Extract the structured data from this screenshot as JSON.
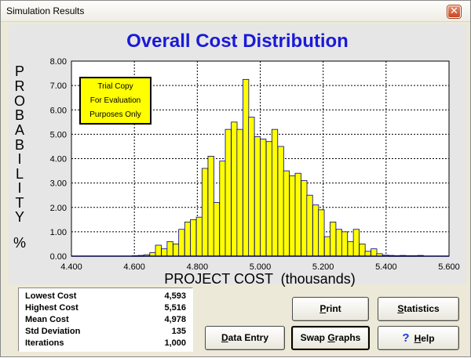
{
  "window": {
    "title": "Simulation Results",
    "close_glyph": "✕"
  },
  "chart_title": "Overall  Cost  Distribution",
  "trial_box": {
    "line1": "Trial Copy",
    "line2": "For Evaluation",
    "line3": "Purposes Only"
  },
  "chart_data": {
    "type": "bar",
    "title": "Overall  Cost  Distribution",
    "ylabel_letters": [
      "P",
      "R",
      "O",
      "B",
      "A",
      "B",
      "I",
      "L",
      "I",
      "T",
      "Y",
      "%"
    ],
    "xlabel": "PROJECT COST  (thousands)",
    "xlim": [
      4.4,
      5.6
    ],
    "ylim": [
      0,
      8
    ],
    "xticks": [
      "4.400",
      "4.600",
      "4.800",
      "5.000",
      "5.200",
      "5.400",
      "5.600"
    ],
    "yticks": [
      "0.00",
      "1.00",
      "2.00",
      "3.00",
      "4.00",
      "5.00",
      "6.00",
      "7.00",
      "8.00"
    ],
    "grid": true,
    "bar_color": "#ffff00",
    "bin_width": 0.0185,
    "bins": [
      {
        "x": 4.593,
        "y": 0.02
      },
      {
        "x": 4.612,
        "y": 0.03
      },
      {
        "x": 4.63,
        "y": 0.06
      },
      {
        "x": 4.649,
        "y": 0.15
      },
      {
        "x": 4.667,
        "y": 0.45
      },
      {
        "x": 4.686,
        "y": 0.3
      },
      {
        "x": 4.704,
        "y": 0.6
      },
      {
        "x": 4.723,
        "y": 0.5
      },
      {
        "x": 4.741,
        "y": 1.1
      },
      {
        "x": 4.76,
        "y": 1.4
      },
      {
        "x": 4.778,
        "y": 1.5
      },
      {
        "x": 4.797,
        "y": 1.6
      },
      {
        "x": 4.815,
        "y": 3.6
      },
      {
        "x": 4.834,
        "y": 4.1
      },
      {
        "x": 4.852,
        "y": 2.2
      },
      {
        "x": 4.871,
        "y": 3.9
      },
      {
        "x": 4.889,
        "y": 5.2
      },
      {
        "x": 4.908,
        "y": 5.5
      },
      {
        "x": 4.926,
        "y": 5.2
      },
      {
        "x": 4.945,
        "y": 7.25
      },
      {
        "x": 4.963,
        "y": 5.7
      },
      {
        "x": 4.982,
        "y": 4.9
      },
      {
        "x": 5.0,
        "y": 4.8
      },
      {
        "x": 5.019,
        "y": 4.7
      },
      {
        "x": 5.037,
        "y": 5.2
      },
      {
        "x": 5.056,
        "y": 4.5
      },
      {
        "x": 5.074,
        "y": 3.5
      },
      {
        "x": 5.093,
        "y": 3.3
      },
      {
        "x": 5.111,
        "y": 3.4
      },
      {
        "x": 5.13,
        "y": 3.1
      },
      {
        "x": 5.148,
        "y": 2.5
      },
      {
        "x": 5.167,
        "y": 2.1
      },
      {
        "x": 5.185,
        "y": 1.9
      },
      {
        "x": 5.204,
        "y": 0.8
      },
      {
        "x": 5.222,
        "y": 1.4
      },
      {
        "x": 5.241,
        "y": 1.1
      },
      {
        "x": 5.259,
        "y": 1.0
      },
      {
        "x": 5.278,
        "y": 0.6
      },
      {
        "x": 5.296,
        "y": 1.1
      },
      {
        "x": 5.315,
        "y": 0.5
      },
      {
        "x": 5.333,
        "y": 0.2
      },
      {
        "x": 5.352,
        "y": 0.3
      },
      {
        "x": 5.37,
        "y": 0.1
      },
      {
        "x": 5.389,
        "y": 0.04
      },
      {
        "x": 5.407,
        "y": 0.03
      },
      {
        "x": 5.426,
        "y": 0.02
      },
      {
        "x": 5.444,
        "y": 0.03
      },
      {
        "x": 5.463,
        "y": 0.02
      },
      {
        "x": 5.481,
        "y": 0.02
      },
      {
        "x": 5.5,
        "y": 0.03
      }
    ]
  },
  "stats": [
    {
      "label": "Lowest Cost",
      "value": "4,593"
    },
    {
      "label": "Highest Cost",
      "value": "5,516"
    },
    {
      "label": "Mean Cost",
      "value": "4,978"
    },
    {
      "label": "Std Deviation",
      "value": "135"
    },
    {
      "label": "Iterations",
      "value": "1,000"
    }
  ],
  "buttons": {
    "print": {
      "pre": "",
      "accel": "P",
      "post": "rint"
    },
    "statistics": {
      "pre": "",
      "accel": "S",
      "post": "tatistics"
    },
    "data_entry": {
      "pre": "",
      "accel": "D",
      "post": "ata Entry"
    },
    "swap_graphs": {
      "pre": "Swap ",
      "accel": "G",
      "post": "raphs"
    },
    "help": {
      "icon": "?",
      "pre": "",
      "accel": "H",
      "post": "elp"
    }
  },
  "colors": {
    "title_blue": "#1a1ad8",
    "bar_fill": "#ffff00",
    "axis_line": "#0000c8"
  }
}
